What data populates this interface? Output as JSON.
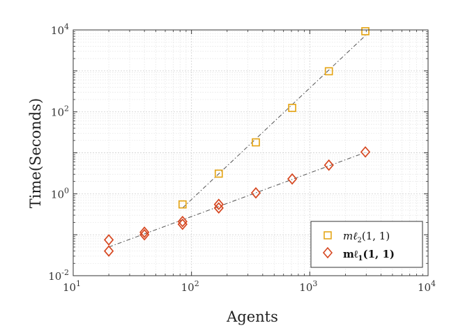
{
  "chart_data": {
    "type": "scatter",
    "xlabel": "Agents",
    "ylabel": "Time(Seconds)",
    "xscale": "log",
    "yscale": "log",
    "xlim": [
      10,
      10000
    ],
    "ylim": [
      0.01,
      10000
    ],
    "xticks": [
      {
        "value": 10,
        "base": "10",
        "exp": "1"
      },
      {
        "value": 100,
        "base": "10",
        "exp": "2"
      },
      {
        "value": 1000,
        "base": "10",
        "exp": "3"
      },
      {
        "value": 10000,
        "base": "10",
        "exp": "4"
      }
    ],
    "yticks": [
      {
        "value": 0.01,
        "base": "10",
        "exp": "-2"
      },
      {
        "value": 1,
        "base": "10",
        "exp": "0"
      },
      {
        "value": 100,
        "base": "10",
        "exp": "2"
      },
      {
        "value": 10000,
        "base": "10",
        "exp": "4"
      }
    ],
    "grid": true,
    "minor_grid": true,
    "legend_position": "bottom-right",
    "series": [
      {
        "name_main": "mℓ",
        "name_sub": "2",
        "name_args": "(1, 1)",
        "bold": false,
        "marker": "square",
        "color": "#e5a619",
        "fit_line": true,
        "points": [
          {
            "x": 84,
            "y": 0.55
          },
          {
            "x": 170,
            "y": 3.1
          },
          {
            "x": 350,
            "y": 18
          },
          {
            "x": 710,
            "y": 125
          },
          {
            "x": 1450,
            "y": 980
          },
          {
            "x": 2950,
            "y": 9300
          }
        ]
      },
      {
        "name_main": "mℓ",
        "name_sub": "1",
        "name_args": "(1, 1)",
        "bold": true,
        "marker": "diamond",
        "color": "#d6461f",
        "fit_line": true,
        "points": [
          {
            "x": 20,
            "y": 0.04
          },
          {
            "x": 20,
            "y": 0.075
          },
          {
            "x": 40,
            "y": 0.1
          },
          {
            "x": 40,
            "y": 0.115
          },
          {
            "x": 84,
            "y": 0.18
          },
          {
            "x": 84,
            "y": 0.21
          },
          {
            "x": 170,
            "y": 0.45
          },
          {
            "x": 170,
            "y": 0.55
          },
          {
            "x": 350,
            "y": 1.05
          },
          {
            "x": 710,
            "y": 2.3
          },
          {
            "x": 1450,
            "y": 5.0
          },
          {
            "x": 2950,
            "y": 10.5
          }
        ]
      }
    ]
  }
}
